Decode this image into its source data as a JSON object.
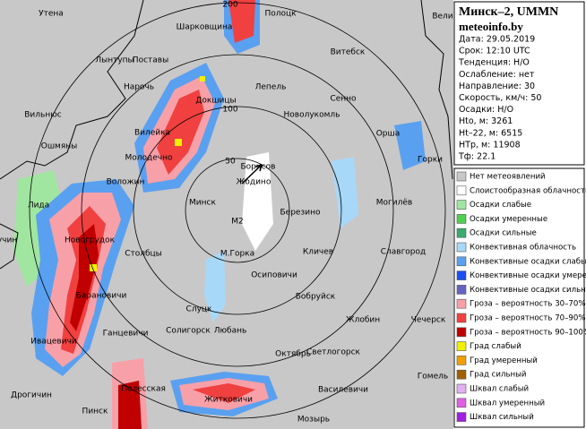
{
  "header": {
    "title": "Минск–2, UMMN",
    "site": "meteoinfo.by"
  },
  "info": [
    "Дата: 29.05.2019",
    "Срок: 12:10 UTC",
    "Тенденция: Н/О",
    "Ослабление: нет",
    "Направление: 30",
    "Скорость, км/ч: 50",
    "Осадки: Н/О",
    "Hto, м: 3261",
    "Ht–22, м: 6515",
    "HTp, м: 11908",
    "Тф: 22.1"
  ],
  "legend": [
    {
      "label": "Нет метеоявлений",
      "color": "#c8c8c8"
    },
    {
      "label": "Слоистообразная облачность",
      "color": "#ffffff"
    },
    {
      "label": "Осадки слабые",
      "color": "#a0e6a0"
    },
    {
      "label": "Осадки умеренные",
      "color": "#50d050"
    },
    {
      "label": "Осадки сильные",
      "color": "#3caa6e"
    },
    {
      "label": "Конвективная облачность",
      "color": "#a8d8f8"
    },
    {
      "label": "Конвективные осадки слабые",
      "color": "#5aa0f0"
    },
    {
      "label": "Конвективные осадки умерен.",
      "color": "#1a4ef0"
    },
    {
      "label": "Конвективные осадки сильные",
      "color": "#6464c0"
    },
    {
      "label": "Гроза – вероятность 30–70%",
      "color": "#f8a0a8"
    },
    {
      "label": "Гроза – вероятность 70–90%",
      "color": "#f04040"
    },
    {
      "label": "Гроза – вероятность 90–100%",
      "color": "#c00000"
    },
    {
      "label": "Град слабый",
      "color": "#f0f000"
    },
    {
      "label": "Град умеренный",
      "color": "#f0a000"
    },
    {
      "label": "Град сильный",
      "color": "#a06000"
    },
    {
      "label": "Шквал слабый",
      "color": "#e0b0f0"
    },
    {
      "label": "Шквал умеренный",
      "color": "#e060e0"
    },
    {
      "label": "Шквал сильный",
      "color": "#a020e0"
    }
  ],
  "rings": [
    "50",
    "100",
    "200"
  ],
  "station": "M2",
  "cities": [
    "Утена",
    "Шарковщина",
    "Полоцк",
    "Вели",
    "Витебск",
    "Лынтупы",
    "Поставы",
    "Нарочь",
    "Докшицы",
    "Лепель",
    "Сенно",
    "Вильнюс",
    "Новолукомль",
    "Вилейка",
    "Ошмяны",
    "Орша",
    "Молодечно",
    "Горки",
    "Борисов",
    "Воложин",
    "Жодино",
    "Минск",
    "Лида",
    "Березино",
    "Могилёв",
    "Новогрудок",
    "учин",
    "Столбцы",
    "М.Горка",
    "Кличев",
    "Славгород",
    "Осиповичи",
    "Барановичи",
    "Бобруйск",
    "Слуцк",
    "Ганцевичи",
    "Солигорск",
    "Любань",
    "Жлобин",
    "Чечерск",
    "Ивацевичи",
    "Октябрь",
    "Светлогорск",
    "Гомель",
    "Полесская",
    "Василевичи",
    "Дрогичин",
    "Пинск",
    "Житковичи",
    "Мозырь"
  ]
}
